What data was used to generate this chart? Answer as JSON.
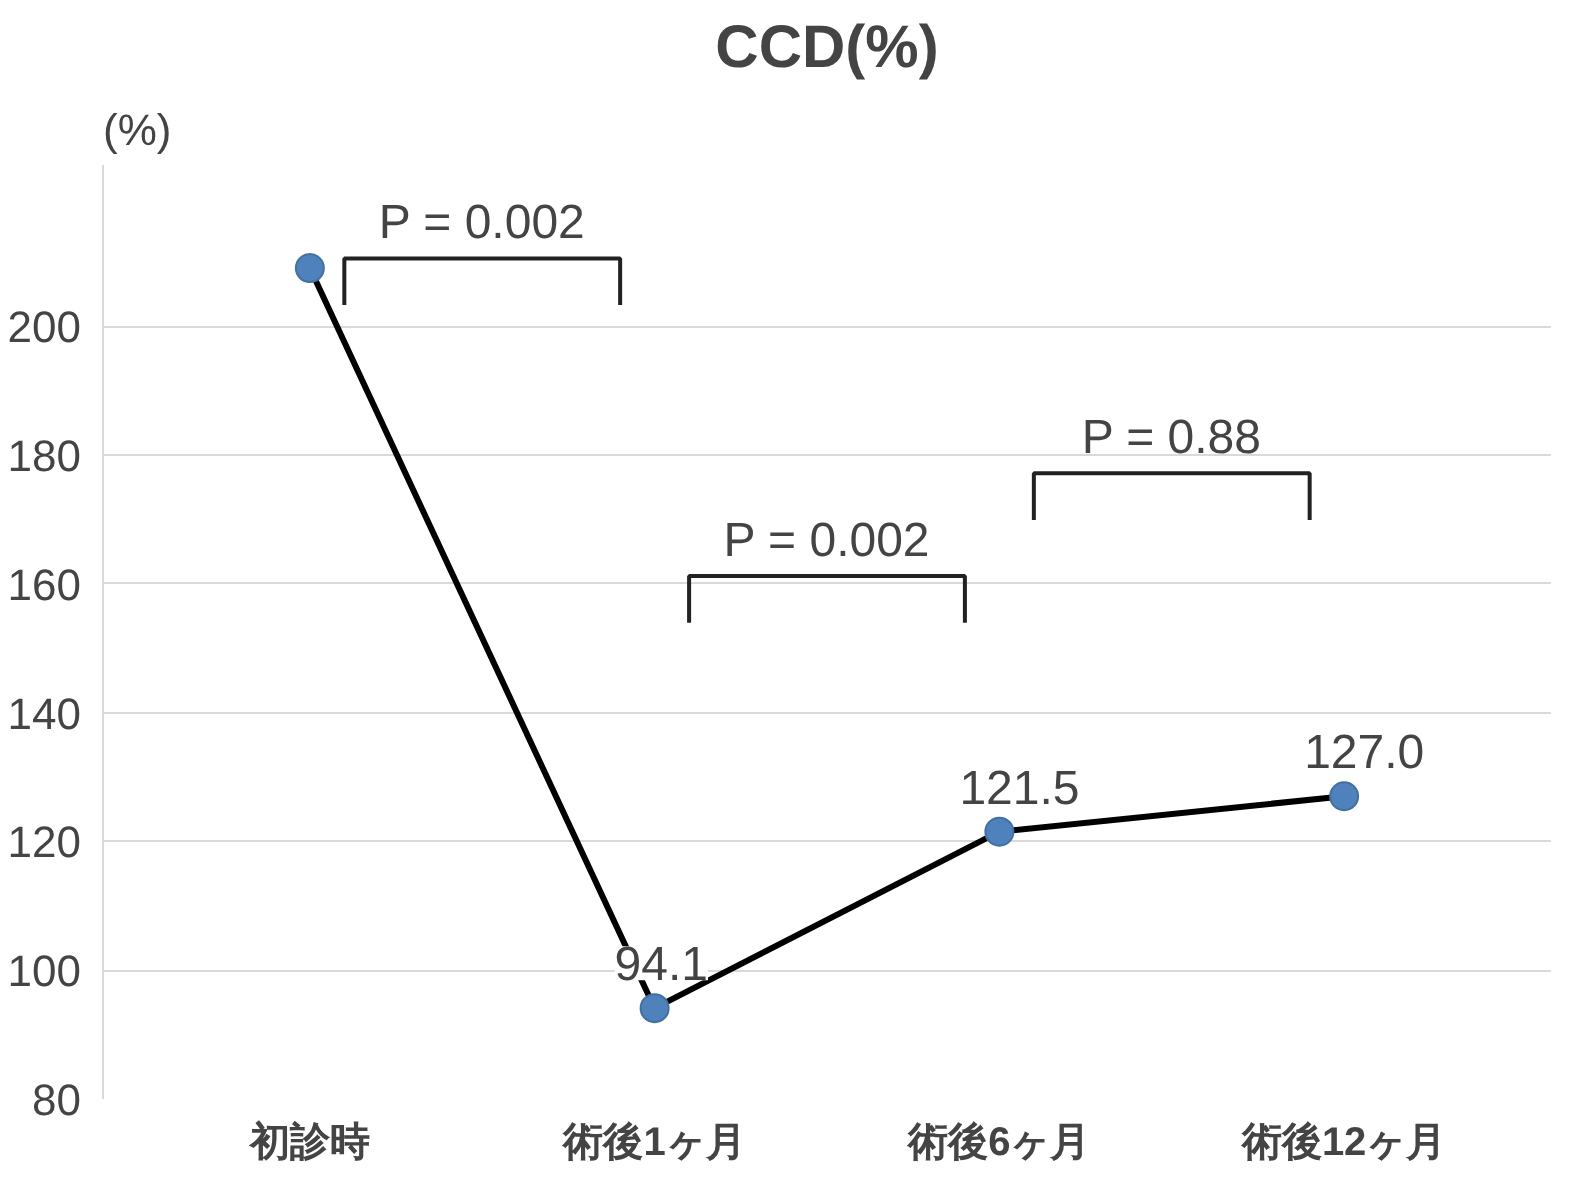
{
  "chart_data": {
    "type": "line",
    "title": "CCD(%)",
    "ylabel": "(%)",
    "categories": [
      "初診時",
      "術後1ヶ月",
      "術後6ヶ月",
      "術後12ヶ月"
    ],
    "series": [
      {
        "color": "#000000",
        "colors": [
          "#4f81bd",
          "#4f81bd",
          "#4f81bd",
          "#4f81bd"
        ],
        "values": [
          209,
          94.1,
          121.5,
          127.0
        ],
        "value_labels": [
          null,
          "94.1",
          "121.5",
          "127.0"
        ]
      }
    ],
    "ylim": [
      80,
      225
    ],
    "yticks": [
      80,
      100,
      120,
      140,
      160,
      180,
      200
    ],
    "grid": "y",
    "marker": "circle",
    "line_style": "solid",
    "annotations": [
      "P = 0.002",
      "P = 0.002",
      "P = 0.88"
    ]
  }
}
